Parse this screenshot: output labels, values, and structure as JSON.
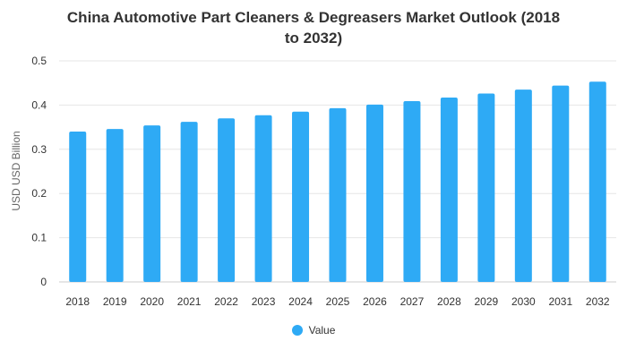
{
  "chart_data": {
    "type": "bar",
    "title_lines": [
      "China Automotive Part Cleaners & Degreasers Market Outlook (2018",
      "to 2032)"
    ],
    "categories": [
      "2018",
      "2019",
      "2020",
      "2021",
      "2022",
      "2023",
      "2024",
      "2025",
      "2026",
      "2027",
      "2028",
      "2029",
      "2030",
      "2031",
      "2032"
    ],
    "series": [
      {
        "name": "Value",
        "values": [
          0.34,
          0.346,
          0.354,
          0.362,
          0.37,
          0.377,
          0.385,
          0.393,
          0.401,
          0.409,
          0.417,
          0.426,
          0.435,
          0.444,
          0.453
        ]
      }
    ],
    "ylabel": "USD USD Billion",
    "xlabel": "",
    "ylim": [
      0,
      0.5
    ],
    "yticks": [
      "0",
      "0.1",
      "0.2",
      "0.3",
      "0.4",
      "0.5"
    ],
    "grid": true,
    "legend_position": "bottom",
    "bar_color": "#2eaaf5",
    "grid_color": "#e6e6e6"
  }
}
